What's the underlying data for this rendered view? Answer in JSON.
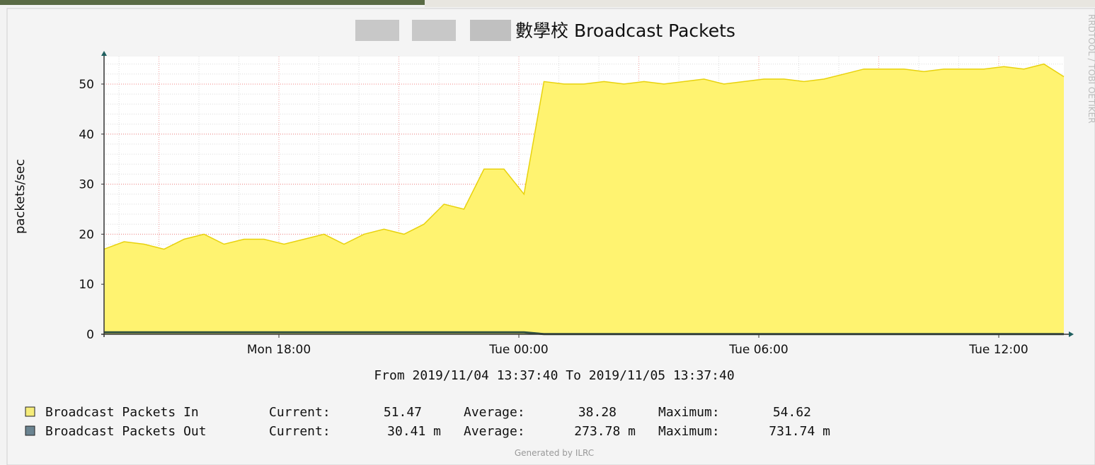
{
  "chart_data": {
    "type": "area",
    "title": "數學校 Broadcast Packets",
    "y_label": "packets/sec",
    "x_caption": "From 2019/11/04 13:37:40 To 2019/11/05 13:37:40",
    "footer": "Generated by ILRC",
    "side_text": "RRDTOOL / TOBI OETIKER",
    "stat_labels": [
      "Current:",
      "Average:",
      "Maximum:"
    ],
    "x": [
      "2019-11-04T13:37:40",
      "2019-11-04T14:07:40",
      "2019-11-04T14:37:40",
      "2019-11-04T15:07:40",
      "2019-11-04T15:37:40",
      "2019-11-04T16:07:40",
      "2019-11-04T16:37:40",
      "2019-11-04T17:07:40",
      "2019-11-04T17:37:40",
      "2019-11-04T18:07:40",
      "2019-11-04T18:37:40",
      "2019-11-04T19:07:40",
      "2019-11-04T19:37:40",
      "2019-11-04T20:07:40",
      "2019-11-04T20:37:40",
      "2019-11-04T21:07:40",
      "2019-11-04T21:37:40",
      "2019-11-04T22:07:40",
      "2019-11-04T22:37:40",
      "2019-11-04T23:07:40",
      "2019-11-04T23:37:40",
      "2019-11-05T00:07:40",
      "2019-11-05T00:37:40",
      "2019-11-05T01:07:40",
      "2019-11-05T01:37:40",
      "2019-11-05T02:07:40",
      "2019-11-05T02:37:40",
      "2019-11-05T03:07:40",
      "2019-11-05T03:37:40",
      "2019-11-05T04:07:40",
      "2019-11-05T04:37:40",
      "2019-11-05T05:07:40",
      "2019-11-05T05:37:40",
      "2019-11-05T06:07:40",
      "2019-11-05T06:37:40",
      "2019-11-05T07:07:40",
      "2019-11-05T07:37:40",
      "2019-11-05T08:07:40",
      "2019-11-05T08:37:40",
      "2019-11-05T09:07:40",
      "2019-11-05T09:37:40",
      "2019-11-05T10:07:40",
      "2019-11-05T10:37:40",
      "2019-11-05T11:07:40",
      "2019-11-05T11:37:40",
      "2019-11-05T12:07:40",
      "2019-11-05T12:37:40",
      "2019-11-05T13:07:40",
      "2019-11-05T13:37:40"
    ],
    "xlim": [
      "2019-11-04T13:37:40",
      "2019-11-05T13:37:40"
    ],
    "xticks": [
      {
        "value": "2019-11-04T18:00:00",
        "label": "Mon 18:00"
      },
      {
        "value": "2019-11-05T00:00:00",
        "label": "Tue 00:00"
      },
      {
        "value": "2019-11-05T06:00:00",
        "label": "Tue 06:00"
      },
      {
        "value": "2019-11-05T12:00:00",
        "label": "Tue 12:00"
      }
    ],
    "ylim": [
      0,
      55.5
    ],
    "yticks": [
      0,
      10,
      20,
      30,
      40,
      50
    ],
    "grid": true,
    "series": [
      {
        "name": "Broadcast Packets In",
        "color": "#fff370",
        "line_color": "#e8d20c",
        "swatch": "#f5ec7a",
        "values": [
          17,
          18.5,
          18,
          17,
          19,
          20,
          18,
          19,
          19,
          18,
          19,
          20,
          18,
          20,
          21,
          20,
          22,
          26,
          25,
          33,
          33,
          28,
          50.5,
          50,
          50,
          50.5,
          50,
          50.5,
          50,
          50.5,
          51,
          50,
          50.5,
          51,
          51,
          50.5,
          51,
          52,
          53,
          53,
          53,
          52.5,
          53,
          53,
          53,
          53.5,
          53,
          54,
          51.47
        ],
        "stats": [
          "51.47",
          "38.28",
          "54.62"
        ]
      },
      {
        "name": "Broadcast Packets Out",
        "color": "#2f4f3f",
        "line_color": "#2f4f3f",
        "swatch": "#6b8491",
        "values": [
          0.4,
          0.4,
          0.4,
          0.4,
          0.4,
          0.4,
          0.4,
          0.4,
          0.4,
          0.4,
          0.4,
          0.4,
          0.4,
          0.4,
          0.4,
          0.4,
          0.4,
          0.4,
          0.4,
          0.4,
          0.4,
          0.4,
          0.03,
          0.03,
          0.03,
          0.03,
          0.03,
          0.03,
          0.03,
          0.03,
          0.03,
          0.03,
          0.03,
          0.03,
          0.03,
          0.03,
          0.03,
          0.03,
          0.03,
          0.03,
          0.03,
          0.03,
          0.03,
          0.03,
          0.03,
          0.03,
          0.03,
          0.03,
          0.03041
        ],
        "stats": [
          "30.41 m",
          "273.78 m",
          "731.74 m"
        ]
      }
    ]
  }
}
